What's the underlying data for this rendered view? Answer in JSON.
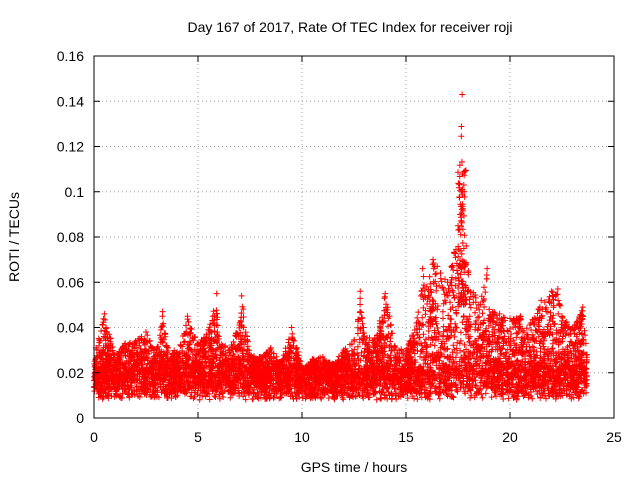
{
  "chart_data": {
    "type": "scatter",
    "title": "Day 167 of 2017, Rate Of TEC Index for receiver roji",
    "xlabel": "GPS time / hours",
    "ylabel": "ROTI / TECUs",
    "xlim": [
      0,
      25
    ],
    "ylim": [
      0,
      0.16
    ],
    "grid": true,
    "marker": "+",
    "color": "#ff0000",
    "x_tick_labels": [
      "0",
      "5",
      "10",
      "15",
      "20",
      "25"
    ],
    "y_tick_labels": [
      "0",
      "0.02",
      "0.04",
      "0.06",
      "0.08",
      "0.1",
      "0.12",
      "0.14",
      "0.16"
    ],
    "x_ticks": [
      0,
      5,
      10,
      15,
      20,
      25
    ],
    "y_ticks": [
      0,
      0.02,
      0.04,
      0.06,
      0.08,
      0.1,
      0.12,
      0.14,
      0.16
    ],
    "data_x_range": [
      0,
      23.7
    ],
    "series": [
      {
        "name": "ROTI",
        "x": [
          0.1,
          0.5,
          1.0,
          1.5,
          2.0,
          2.5,
          3.0,
          3.3,
          3.5,
          4.0,
          4.5,
          5.0,
          5.5,
          5.9,
          6.0,
          6.5,
          7.0,
          7.1,
          7.5,
          8.0,
          8.5,
          9.0,
          9.5,
          10.0,
          10.5,
          11.0,
          11.5,
          12.0,
          12.5,
          12.8,
          13.0,
          13.5,
          14.0,
          14.5,
          15.0,
          15.5,
          15.8,
          16.0,
          16.3,
          16.5,
          17.0,
          17.5,
          17.7,
          17.8,
          18.0,
          18.5,
          18.9,
          19.0,
          19.5,
          20.0,
          20.5,
          21.0,
          21.5,
          22.0,
          22.3,
          22.5,
          23.0,
          23.5,
          23.7
        ],
        "y": [
          0.031,
          0.046,
          0.028,
          0.033,
          0.034,
          0.038,
          0.03,
          0.047,
          0.032,
          0.029,
          0.045,
          0.033,
          0.039,
          0.055,
          0.035,
          0.03,
          0.042,
          0.054,
          0.028,
          0.027,
          0.031,
          0.025,
          0.04,
          0.022,
          0.026,
          0.027,
          0.024,
          0.03,
          0.034,
          0.056,
          0.036,
          0.035,
          0.055,
          0.031,
          0.03,
          0.042,
          0.066,
          0.058,
          0.07,
          0.067,
          0.06,
          0.085,
          0.143,
          0.1,
          0.065,
          0.05,
          0.066,
          0.048,
          0.046,
          0.044,
          0.045,
          0.042,
          0.052,
          0.056,
          0.057,
          0.045,
          0.04,
          0.049,
          0.028
        ]
      }
    ]
  }
}
